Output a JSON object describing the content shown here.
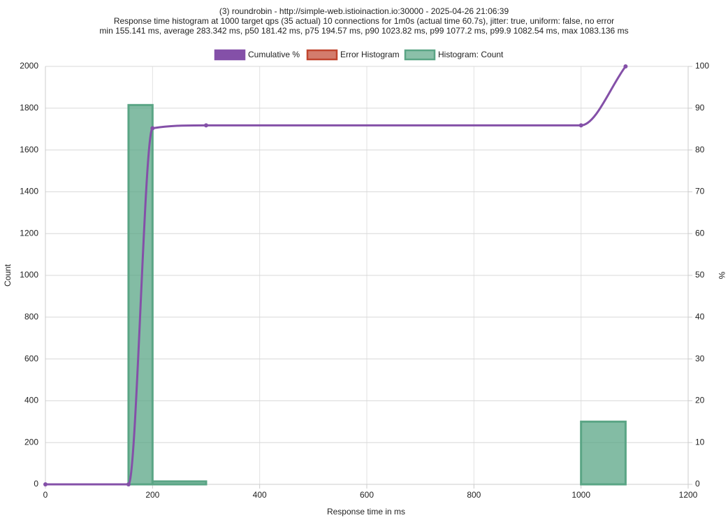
{
  "chart_data": {
    "type": "histogram",
    "title": [
      "(3) roundrobin - http://simple-web.istioinaction.io:30000 - 2025-04-26 21:06:39",
      "Response time histogram at 1000 target qps (35 actual) 10 connections for 1m0s (actual time 60.7s), jitter: true, uniform: false, no error",
      "min 155.141 ms, average 283.342 ms, p50 181.42 ms, p75 194.57 ms, p90 1023.82 ms, p99 1077.2 ms, p99.9 1082.54 ms, max 1083.136 ms"
    ],
    "xlabel": "Response time in ms",
    "ylabel": "Count",
    "y2label": "%",
    "xlim": [
      0,
      1200
    ],
    "xticks": [
      0,
      200,
      400,
      600,
      800,
      1000,
      1200
    ],
    "ylim": [
      0,
      2000
    ],
    "yticks": [
      0,
      200,
      400,
      600,
      800,
      1000,
      1200,
      1400,
      1600,
      1800,
      2000
    ],
    "y2lim": [
      0,
      100
    ],
    "y2ticks": [
      0,
      10,
      20,
      30,
      40,
      50,
      60,
      70,
      80,
      90,
      100
    ],
    "grid": true,
    "legend": "top",
    "series": [
      {
        "name": "Cumulative %",
        "type": "line",
        "axis": "y2",
        "color": "#8450a8",
        "x": [
          0,
          155.141,
          200,
          300,
          1000,
          1083.136
        ],
        "values": [
          0,
          0,
          85.2,
          85.9,
          85.9,
          100
        ]
      },
      {
        "name": "Error Histogram",
        "type": "bar",
        "color": "#c0452f"
      },
      {
        "name": "Histogram: Count",
        "type": "bar",
        "color": "#5aa585",
        "bins": [
          155.141,
          200,
          300,
          1000,
          1083.136
        ],
        "values": [
          1815,
          14,
          0,
          300
        ]
      }
    ]
  }
}
